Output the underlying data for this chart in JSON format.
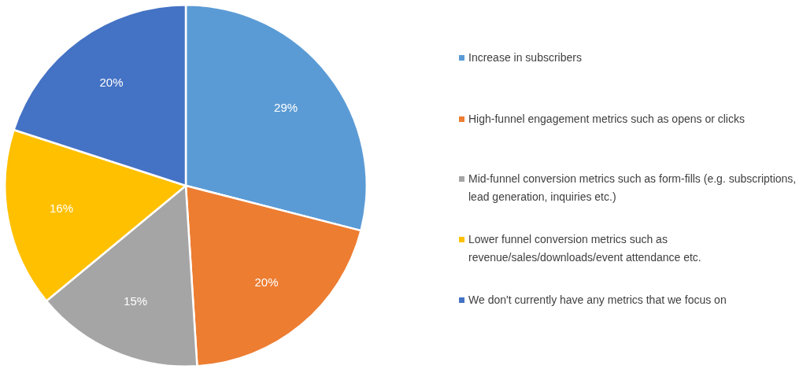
{
  "chart_data": {
    "type": "pie",
    "categories": [
      "Increase in subscribers",
      "High-funnel  engagement metrics  such as opens or clicks",
      "Mid-funnel conversion metrics such as form-fills  (e.g. subscriptions,  lead generation,  inquiries etc.)",
      "Lower funnel conversion metrics such as revenue/sales/downloads/event attendance etc.",
      "We don't currently  have any metrics that we focus on"
    ],
    "values": [
      29,
      20,
      15,
      16,
      20
    ],
    "colors": [
      "#5b9bd5",
      "#ed7d31",
      "#a5a5a5",
      "#ffc000",
      "#4472c4"
    ],
    "value_labels": [
      "29%",
      "20%",
      "15%",
      "16%",
      "20%"
    ],
    "legend": "right"
  }
}
